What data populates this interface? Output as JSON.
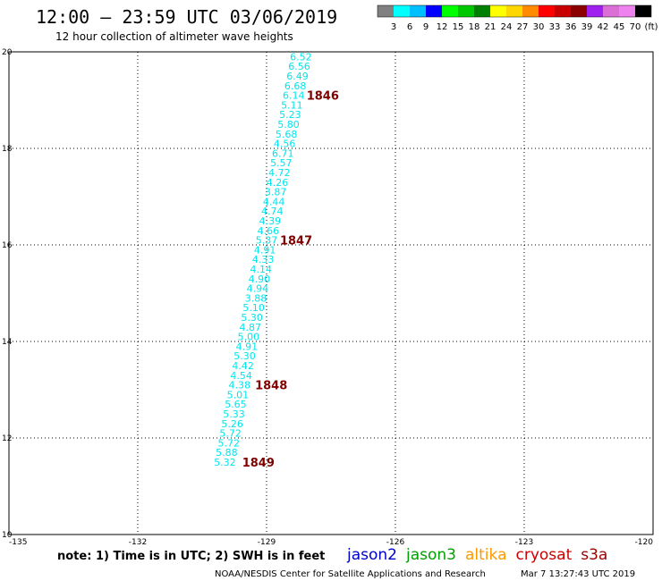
{
  "header": {
    "title": "12:00 — 23:59 UTC 03/06/2019",
    "subtitle": "12 hour collection of altimeter wave heights"
  },
  "legend": {
    "labels": [
      "3",
      "6",
      "9",
      "12",
      "15",
      "18",
      "21",
      "24",
      "27",
      "30",
      "33",
      "36",
      "39",
      "42",
      "45",
      "70",
      "(ft)"
    ],
    "colors": [
      "#808080",
      "#00ffff",
      "#00bfff",
      "#0000ff",
      "#00ff00",
      "#00c800",
      "#008000",
      "#ffff00",
      "#ffd700",
      "#ff8c00",
      "#ff0000",
      "#c80000",
      "#8b0000",
      "#a020f0",
      "#da70d6",
      "#ee82ee",
      "#000000"
    ]
  },
  "chart_data": {
    "type": "scatter",
    "title": "12:00 — 23:59 UTC 03/06/2019",
    "subtitle": "12 hour collection of altimeter wave heights",
    "xlim": [
      -135,
      -120
    ],
    "ylim": [
      10,
      20
    ],
    "x_ticks": [
      "-135",
      "-132",
      "-129",
      "-126",
      "-123",
      "-120"
    ],
    "y_ticks": [
      "10",
      "12",
      "14",
      "16",
      "18",
      "20"
    ],
    "grid": true,
    "point_color": "#00e5ee",
    "pass_color": "#800000",
    "points": [
      {
        "lon": -128.2,
        "lat": 19.9,
        "label": "6.52"
      },
      {
        "lon": -128.24,
        "lat": 19.7,
        "label": "6.56"
      },
      {
        "lon": -128.28,
        "lat": 19.5,
        "label": "6.49"
      },
      {
        "lon": -128.33,
        "lat": 19.3,
        "label": "6.68"
      },
      {
        "lon": -128.37,
        "lat": 19.1,
        "label": "6.14"
      },
      {
        "lon": -128.41,
        "lat": 18.9,
        "label": "5.11"
      },
      {
        "lon": -128.45,
        "lat": 18.7,
        "label": "5.23"
      },
      {
        "lon": -128.49,
        "lat": 18.5,
        "label": "5.80"
      },
      {
        "lon": -128.54,
        "lat": 18.3,
        "label": "5.68"
      },
      {
        "lon": -128.58,
        "lat": 18.1,
        "label": "4.56"
      },
      {
        "lon": -128.62,
        "lat": 17.9,
        "label": "6.71"
      },
      {
        "lon": -128.66,
        "lat": 17.7,
        "label": "5.57"
      },
      {
        "lon": -128.7,
        "lat": 17.5,
        "label": "4.72"
      },
      {
        "lon": -128.75,
        "lat": 17.3,
        "label": "4.26"
      },
      {
        "lon": -128.79,
        "lat": 17.1,
        "label": "3.87"
      },
      {
        "lon": -128.83,
        "lat": 16.9,
        "label": "4.44"
      },
      {
        "lon": -128.87,
        "lat": 16.7,
        "label": "4.74"
      },
      {
        "lon": -128.92,
        "lat": 16.5,
        "label": "4.39"
      },
      {
        "lon": -128.96,
        "lat": 16.3,
        "label": "4.66"
      },
      {
        "lon": -129.0,
        "lat": 16.1,
        "label": "5.37"
      },
      {
        "lon": -129.04,
        "lat": 15.9,
        "label": "4.91"
      },
      {
        "lon": -129.08,
        "lat": 15.7,
        "label": "4.33"
      },
      {
        "lon": -129.13,
        "lat": 15.5,
        "label": "4.14"
      },
      {
        "lon": -129.17,
        "lat": 15.3,
        "label": "4.90"
      },
      {
        "lon": -129.21,
        "lat": 15.1,
        "label": "4.94"
      },
      {
        "lon": -129.25,
        "lat": 14.9,
        "label": "3.88"
      },
      {
        "lon": -129.3,
        "lat": 14.7,
        "label": "5.10"
      },
      {
        "lon": -129.34,
        "lat": 14.5,
        "label": "5.30"
      },
      {
        "lon": -129.38,
        "lat": 14.3,
        "label": "4.87"
      },
      {
        "lon": -129.42,
        "lat": 14.1,
        "label": "5.00"
      },
      {
        "lon": -129.46,
        "lat": 13.9,
        "label": "4.91"
      },
      {
        "lon": -129.51,
        "lat": 13.7,
        "label": "5.30"
      },
      {
        "lon": -129.55,
        "lat": 13.5,
        "label": "4.42"
      },
      {
        "lon": -129.59,
        "lat": 13.3,
        "label": "4.54"
      },
      {
        "lon": -129.63,
        "lat": 13.1,
        "label": "4.38"
      },
      {
        "lon": -129.67,
        "lat": 12.9,
        "label": "5.01"
      },
      {
        "lon": -129.72,
        "lat": 12.7,
        "label": "5.65"
      },
      {
        "lon": -129.76,
        "lat": 12.5,
        "label": "5.33"
      },
      {
        "lon": -129.8,
        "lat": 12.3,
        "label": "5.26"
      },
      {
        "lon": -129.84,
        "lat": 12.1,
        "label": "5.72"
      },
      {
        "lon": -129.88,
        "lat": 11.9,
        "label": "5.72"
      },
      {
        "lon": -129.93,
        "lat": 11.7,
        "label": "5.88"
      },
      {
        "lon": -129.97,
        "lat": 11.5,
        "label": "5.32"
      }
    ],
    "pass_labels": [
      {
        "lon": -128.4,
        "lat": 19.1,
        "label": "1846"
      },
      {
        "lon": -129.02,
        "lat": 16.1,
        "label": "1847"
      },
      {
        "lon": -129.6,
        "lat": 13.1,
        "label": "1848"
      },
      {
        "lon": -129.9,
        "lat": 11.5,
        "label": "1849"
      }
    ]
  },
  "note": "note: 1) Time is in UTC; 2) SWH is in feet",
  "satellites": [
    {
      "name": "jason2",
      "color": "#0000cc"
    },
    {
      "name": "jason3",
      "color": "#00a000"
    },
    {
      "name": "altika",
      "color": "#ff9900"
    },
    {
      "name": "cryosat",
      "color": "#cc0000"
    },
    {
      "name": "s3a",
      "color": "#990000"
    }
  ],
  "footer": {
    "credit": "NOAA/NESDIS Center for Satellite Applications and Research",
    "timestamp": "Mar  7 13:27:43 UTC 2019"
  }
}
